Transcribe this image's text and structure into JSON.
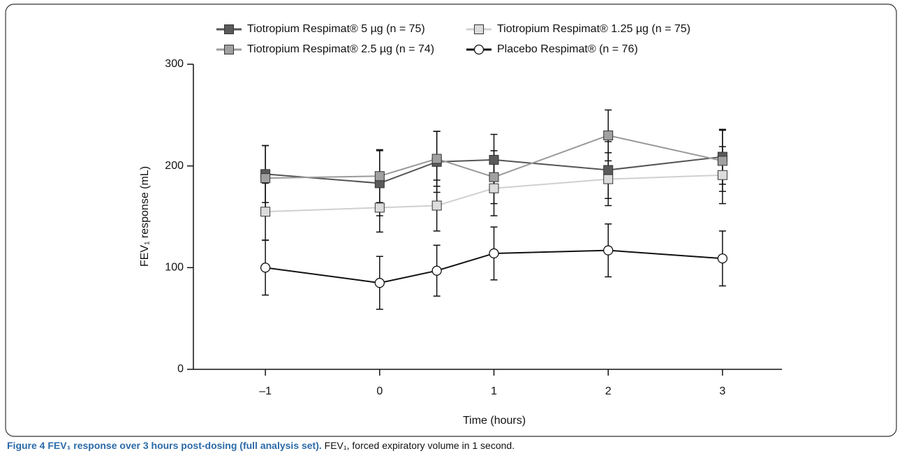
{
  "chart_data": {
    "type": "line",
    "x_label": "Time (hours)",
    "y_label": "FEV₁ response (mL)",
    "x": [
      -1,
      0,
      0.5,
      1,
      2,
      3
    ],
    "xlim": [
      -1.63,
      3.52
    ],
    "xticks": [
      {
        "value": -1,
        "label": "–1"
      },
      0,
      1,
      2,
      3
    ],
    "ylim": [
      0,
      300
    ],
    "yticks": [
      0,
      100,
      200,
      300
    ],
    "series": [
      {
        "name": "Tiotropium Respimat® 5 µg (n = 75)",
        "color": "#555555",
        "marker": "square",
        "marker_fill": "#5a5a5a",
        "values": [
          192,
          183,
          204,
          206,
          196,
          209
        ],
        "errors": [
          28,
          32,
          30,
          25,
          28,
          27
        ]
      },
      {
        "name": "Tiotropium Respimat® 1.25 µg (n = 75)",
        "color": "#d0d0d0",
        "marker": "square",
        "marker_fill": "#dcdcdc",
        "values": [
          155,
          159,
          161,
          178,
          187,
          191
        ],
        "errors": [
          28,
          24,
          25,
          27,
          26,
          28
        ]
      },
      {
        "name": "Tiotropium Respimat® 2.5 µg (n = 74)",
        "color": "#9a9a9a",
        "marker": "square",
        "marker_fill": "#a0a0a0",
        "values": [
          188,
          190,
          207,
          189,
          230,
          205
        ],
        "errors": [
          32,
          26,
          27,
          26,
          25,
          30
        ]
      },
      {
        "name": "Placebo Respimat® (n = 76)",
        "color": "#111111",
        "marker": "circle",
        "marker_fill": "#ffffff",
        "values": [
          100,
          85,
          97,
          114,
          117,
          109
        ],
        "errors": [
          27,
          26,
          25,
          26,
          26,
          27
        ]
      }
    ]
  },
  "caption": {
    "label": "Figure 4 FEV₁ response over 3 hours post-dosing (full analysis set).",
    "text": "FEV₁, forced expiratory volume in 1 second."
  }
}
